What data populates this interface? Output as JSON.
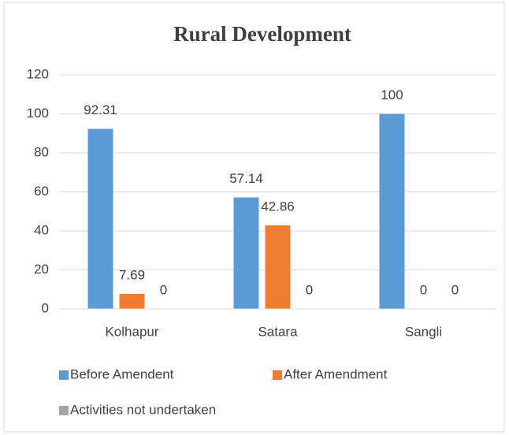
{
  "chart_data": {
    "type": "bar",
    "title": "Rural Development",
    "categories": [
      "Kolhapur",
      "Satara",
      "Sangli"
    ],
    "series": [
      {
        "name": "Before Amendent",
        "color": "#5b9bd5",
        "values": [
          92.31,
          57.14,
          100
        ]
      },
      {
        "name": "After Amendment",
        "color": "#ed7d31",
        "values": [
          7.69,
          42.86,
          0
        ]
      },
      {
        "name": "Activities not undertaken",
        "color": "#a5a5a5",
        "values": [
          0,
          0,
          0
        ]
      }
    ],
    "ylim": [
      0,
      120
    ],
    "yticks": [
      0,
      20,
      40,
      60,
      80,
      100,
      120
    ],
    "grid": true,
    "legend": "bottom"
  }
}
